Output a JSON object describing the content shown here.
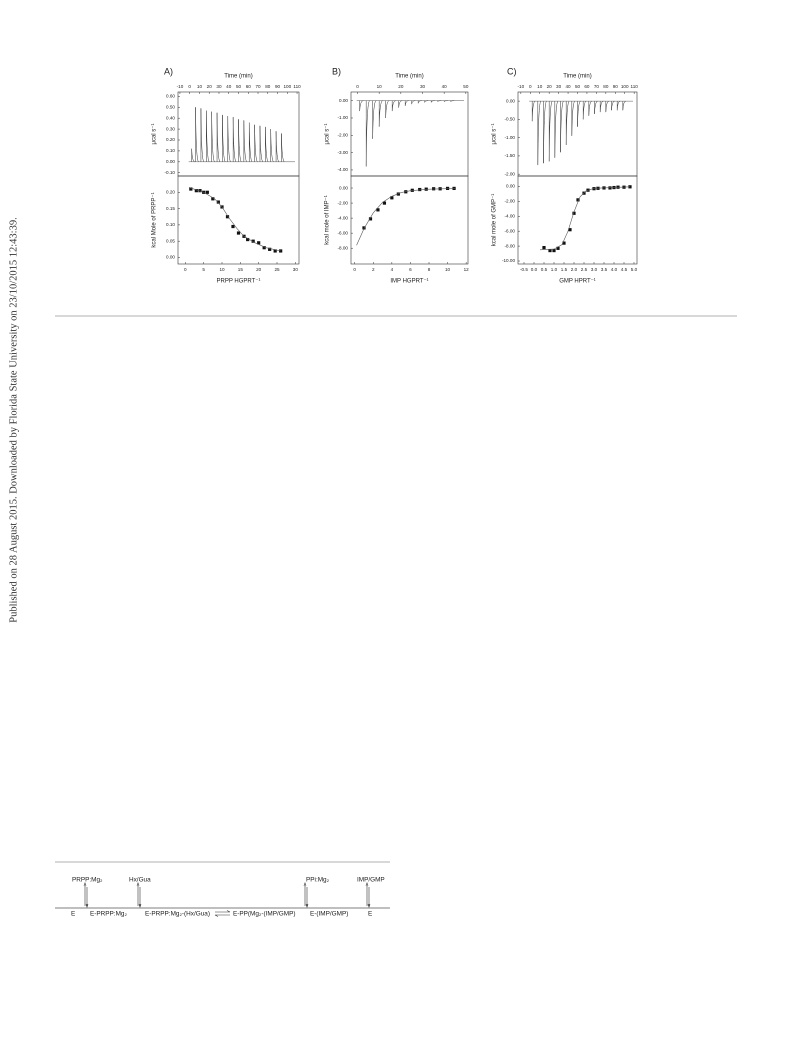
{
  "side_note": "Published on 28 August 2015. Downloaded by Florida State University on 23/10/2015 12:43:39.",
  "figure_labels": [
    "A)",
    "B)",
    "C)"
  ],
  "chart_data": [
    {
      "type": "thermogram",
      "xlabel": "Time (min)",
      "ylabel": "μcal s⁻¹",
      "x": [
        2,
        6,
        11.5,
        17,
        22.5,
        28,
        33.5,
        39,
        44.5,
        50,
        55.5,
        61,
        66.5,
        72,
        77.5,
        83,
        88.5,
        94
      ],
      "values": [
        0.12,
        0.5,
        0.49,
        0.47,
        0.46,
        0.45,
        0.43,
        0.42,
        0.41,
        0.39,
        0.38,
        0.36,
        0.34,
        0.33,
        0.32,
        0.3,
        0.28,
        0.26
      ],
      "xlim": [
        -12,
        112
      ],
      "xticks": [
        -10,
        0,
        10,
        20,
        30,
        40,
        50,
        60,
        70,
        80,
        90,
        100,
        110
      ],
      "ylim": [
        -0.13,
        0.64
      ],
      "yticks": [
        {
          "value": 0.6,
          "label": "0.60"
        },
        {
          "value": 0.5,
          "label": "0.50"
        },
        {
          "value": 0.4,
          "label": "0.40"
        },
        {
          "value": 0.3,
          "label": "0.30"
        },
        {
          "value": 0.2,
          "label": "0.20"
        },
        {
          "value": 0.1,
          "label": "0.10"
        },
        {
          "value": 0,
          "label": "0.00"
        },
        {
          "value": -0.1,
          "label": "-0.10"
        }
      ]
    },
    {
      "type": "scatter",
      "xlabel": "PRPP HGPRT⁻¹",
      "ylabel": "kcal Mole of PRPP⁻¹",
      "series": [
        {
          "marker": "square",
          "x": [
            1.5,
            3,
            4,
            5,
            6,
            7.5,
            9,
            10,
            11.5,
            13,
            14.5,
            16,
            17,
            18.5,
            20,
            21.5,
            23,
            24.5,
            26
          ],
          "values": [
            0.21,
            0.205,
            0.205,
            0.2,
            0.2,
            0.18,
            0.17,
            0.155,
            0.125,
            0.095,
            0.075,
            0.065,
            0.055,
            0.05,
            0.045,
            0.03,
            0.025,
            0.02,
            0.02
          ]
        },
        {
          "marker": "none",
          "x": [
            1,
            5,
            8,
            10,
            12,
            14,
            16,
            19,
            22,
            26
          ],
          "values": [
            0.215,
            0.2,
            0.18,
            0.155,
            0.12,
            0.09,
            0.065,
            0.045,
            0.03,
            0.02
          ]
        }
      ],
      "xlim": [
        -2,
        31
      ],
      "xticks": [
        0,
        5,
        10,
        15,
        20,
        25,
        30
      ],
      "ylim": [
        -0.02,
        0.25
      ],
      "yticks": [
        {
          "value": 0.2,
          "label": "0.20"
        },
        {
          "value": 0.15,
          "label": "0.15"
        },
        {
          "value": 0.1,
          "label": "0.10"
        },
        {
          "value": 0.05,
          "label": "0.05"
        },
        {
          "value": 0,
          "label": "0.00"
        }
      ]
    },
    {
      "type": "thermogram",
      "xlabel": "Time (min)",
      "ylabel": "μcal s⁻¹",
      "x": [
        1,
        4,
        7,
        10,
        13,
        16,
        19,
        22,
        25,
        28,
        31,
        34,
        37,
        40,
        43
      ],
      "values": [
        -0.6,
        -3.8,
        -2.2,
        -1.5,
        -1.0,
        -0.6,
        -0.4,
        -0.3,
        -0.2,
        -0.15,
        -0.1,
        -0.1,
        -0.05,
        -0.05,
        -0.05
      ],
      "xlim": [
        -3,
        51
      ],
      "xticks": [
        0,
        10,
        20,
        30,
        40,
        50
      ],
      "ylim": [
        -4.35,
        0.5
      ],
      "yticks": [
        {
          "value": 0,
          "label": "0.00"
        },
        {
          "value": -1,
          "label": "-1.00"
        },
        {
          "value": -2,
          "label": "-2.00"
        },
        {
          "value": -3,
          "label": "-3.00"
        },
        {
          "value": -4,
          "label": "-4.00"
        }
      ]
    },
    {
      "type": "scatter",
      "xlabel": "IMP HGPRT⁻¹",
      "ylabel": "kcal mole of IMP⁻¹",
      "series": [
        {
          "marker": "square",
          "x": [
            1,
            1.7,
            2.5,
            3.2,
            4,
            4.7,
            5.5,
            6.2,
            7,
            7.7,
            8.5,
            9.2,
            10,
            10.7
          ],
          "values": [
            -5.3,
            -4.1,
            -2.9,
            -2.0,
            -1.3,
            -0.8,
            -0.5,
            -0.3,
            -0.2,
            -0.15,
            -0.1,
            -0.1,
            -0.05,
            -0.05
          ]
        },
        {
          "marker": "none",
          "x": [
            0.2,
            1,
            2,
            3,
            4,
            5,
            6,
            8,
            10.8
          ],
          "values": [
            -7.6,
            -5.4,
            -3.3,
            -1.9,
            -1.1,
            -0.6,
            -0.35,
            -0.15,
            -0.05
          ]
        }
      ],
      "xlim": [
        -0.4,
        12.2
      ],
      "xticks": [
        0,
        2,
        4,
        6,
        8,
        10,
        12
      ],
      "ylim": [
        -10.1,
        1.6
      ],
      "yticks": [
        {
          "value": 0,
          "label": "0.00"
        },
        {
          "value": -2,
          "label": "-2.00"
        },
        {
          "value": -4,
          "label": "-4.00"
        },
        {
          "value": -6,
          "label": "-6.00"
        },
        {
          "value": -8,
          "label": "-8.00"
        }
      ]
    },
    {
      "type": "thermogram",
      "xlabel": "Time (min)",
      "ylabel": "μcal s⁻¹",
      "x": [
        2,
        8,
        14,
        20,
        26,
        32,
        38,
        44,
        50,
        56,
        62,
        68,
        74,
        80,
        86,
        92,
        98
      ],
      "values": [
        -0.55,
        -1.75,
        -1.7,
        -1.65,
        -1.55,
        -1.4,
        -1.2,
        -0.95,
        -0.7,
        -0.5,
        -0.4,
        -0.35,
        -0.3,
        -0.3,
        -0.25,
        -0.25,
        -0.25
      ],
      "xlim": [
        -13,
        113
      ],
      "xticks": [
        -10,
        0,
        10,
        20,
        30,
        40,
        50,
        60,
        70,
        80,
        90,
        100,
        110
      ],
      "ylim": [
        -2.05,
        0.25
      ],
      "yticks": [
        {
          "value": 0,
          "label": "0.00"
        },
        {
          "value": -0.5,
          "label": "-0.50"
        },
        {
          "value": -1,
          "label": "-1.00"
        },
        {
          "value": -1.5,
          "label": "-1.50"
        },
        {
          "value": -2,
          "label": "-2.00"
        }
      ]
    },
    {
      "type": "scatter",
      "xlabel": "GMP HPRT⁻¹",
      "ylabel": "kcal mole of GMP⁻¹",
      "series": [
        {
          "marker": "square",
          "x": [
            0.5,
            0.8,
            1.0,
            1.2,
            1.5,
            1.8,
            2.0,
            2.2,
            2.5,
            2.7,
            3.0,
            3.2,
            3.5,
            3.8,
            4.0,
            4.2,
            4.5,
            4.8
          ],
          "values": [
            -8.2,
            -8.6,
            -8.6,
            -8.3,
            -7.6,
            -5.8,
            -3.6,
            -1.8,
            -0.9,
            -0.5,
            -0.3,
            -0.25,
            -0.2,
            -0.2,
            -0.15,
            -0.1,
            -0.1,
            -0.05
          ]
        },
        {
          "marker": "none",
          "x": [
            0.3,
            1.0,
            1.4,
            1.7,
            2.0,
            2.3,
            2.6,
            3.0,
            4.8
          ],
          "values": [
            -8.5,
            -8.4,
            -7.8,
            -6.0,
            -3.4,
            -1.4,
            -0.6,
            -0.25,
            -0.05
          ]
        }
      ],
      "xlim": [
        -0.8,
        5.15
      ],
      "xticks": [
        -0.5,
        {
          "value": 0,
          "label": "0.0"
        },
        0.5,
        {
          "value": 1,
          "label": "1.0"
        },
        1.5,
        {
          "value": 2,
          "label": "2.0"
        },
        2.5,
        {
          "value": 3,
          "label": "3.0"
        },
        3.5,
        {
          "value": 4,
          "label": "4.0"
        },
        4.5,
        {
          "value": 5,
          "label": "5.0"
        }
      ],
      "ylim": [
        -10.4,
        1.4
      ],
      "yticks": [
        {
          "value": 0,
          "label": "0.00"
        },
        {
          "value": -2,
          "label": "-2.00"
        },
        {
          "value": -4,
          "label": "-4.00"
        },
        {
          "value": -6,
          "label": "-6.00"
        },
        {
          "value": -8,
          "label": "-8.00"
        },
        {
          "value": -10,
          "label": "-10.00"
        }
      ]
    }
  ],
  "scheme": {
    "reagents": [
      "PRPP:Mg₂",
      "Hx/Gua",
      "PPi:Mg₂",
      "IMP/GMP"
    ],
    "species": [
      "E",
      "E-PRPP:Mg₂",
      "E-PRPP:Mg₂-(Hx/Gua)",
      "E-PP(Mg₂-(IMP/GMP)",
      "E-(IMP/GMP)",
      "E"
    ]
  }
}
